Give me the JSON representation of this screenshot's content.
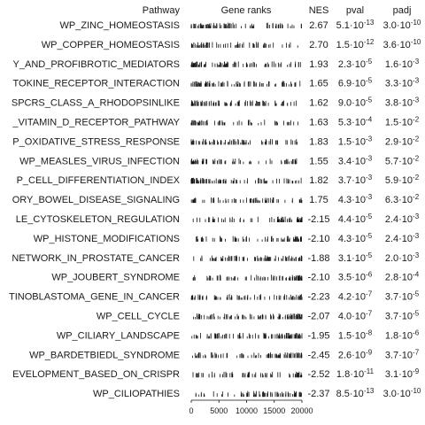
{
  "chart_data": {
    "type": "table",
    "columns": [
      "Pathway",
      "Gene ranks",
      "NES",
      "pval",
      "padj"
    ],
    "x_axis": {
      "ticks": [
        "0",
        "5000",
        "10000",
        "15000",
        "20000"
      ],
      "range": [
        0,
        20000
      ]
    },
    "rows": [
      {
        "pathway": "WP_ZINC_HOMEOSTASIS",
        "nes": "2.67",
        "pval_base": "5.1·10",
        "pval_exp": "-13",
        "padj_base": "3.0·10",
        "padj_exp": "-10",
        "direction": "up"
      },
      {
        "pathway": "WP_COPPER_HOMEOSTASIS",
        "nes": "2.70",
        "pval_base": "1.5·10",
        "pval_exp": "-12",
        "padj_base": "3.6·10",
        "padj_exp": "-10",
        "direction": "up"
      },
      {
        "pathway": "Y_AND_PROFIBROTIC_MEDIATORS",
        "nes": "1.93",
        "pval_base": "2.3·10",
        "pval_exp": "-5",
        "padj_base": "1.6·10",
        "padj_exp": "-3",
        "direction": "up"
      },
      {
        "pathway": "TOKINE_RECEPTOR_INTERACTION",
        "nes": "1.65",
        "pval_base": "6.9·10",
        "pval_exp": "-5",
        "padj_base": "3.3·10",
        "padj_exp": "-3",
        "direction": "up"
      },
      {
        "pathway": "SPCRS_CLASS_A_RHODOPSINLIKE",
        "nes": "1.62",
        "pval_base": "9.0·10",
        "pval_exp": "-5",
        "padj_base": "3.8·10",
        "padj_exp": "-3",
        "direction": "up"
      },
      {
        "pathway": "_VITAMIN_D_RECEPTOR_PATHWAY",
        "nes": "1.63",
        "pval_base": "5.3·10",
        "pval_exp": "-4",
        "padj_base": "1.5·10",
        "padj_exp": "-2",
        "direction": "up"
      },
      {
        "pathway": "P_OXIDATIVE_STRESS_RESPONSE",
        "nes": "1.83",
        "pval_base": "1.5·10",
        "pval_exp": "-3",
        "padj_base": "2.9·10",
        "padj_exp": "-2",
        "direction": "up"
      },
      {
        "pathway": "WP_MEASLES_VIRUS_INFECTION",
        "nes": "1.55",
        "pval_base": "3.4·10",
        "pval_exp": "-3",
        "padj_base": "5.7·10",
        "padj_exp": "-2",
        "direction": "up"
      },
      {
        "pathway": "P_CELL_DIFFERENTIATION_INDEX",
        "nes": "1.82",
        "pval_base": "3.7·10",
        "pval_exp": "-3",
        "padj_base": "5.9·10",
        "padj_exp": "-2",
        "direction": "up"
      },
      {
        "pathway": "ORY_BOWEL_DISEASE_SIGNALING",
        "nes": "1.75",
        "pval_base": "4.3·10",
        "pval_exp": "-3",
        "padj_base": "6.3·10",
        "padj_exp": "-2",
        "direction": "up"
      },
      {
        "pathway": "LE_CYTOSKELETON_REGULATION",
        "nes": "-2.15",
        "pval_base": "4.4·10",
        "pval_exp": "-5",
        "padj_base": "2.4·10",
        "padj_exp": "-3",
        "direction": "down"
      },
      {
        "pathway": "WP_HISTONE_MODIFICATIONS",
        "nes": "-2.10",
        "pval_base": "4.3·10",
        "pval_exp": "-5",
        "padj_base": "2.4·10",
        "padj_exp": "-3",
        "direction": "down"
      },
      {
        "pathway": "NETWORK_IN_PROSTATE_CANCER",
        "nes": "-1.88",
        "pval_base": "3.1·10",
        "pval_exp": "-5",
        "padj_base": "2.0·10",
        "padj_exp": "-3",
        "direction": "down"
      },
      {
        "pathway": "WP_JOUBERT_SYNDROME",
        "nes": "-2.10",
        "pval_base": "3.5·10",
        "pval_exp": "-6",
        "padj_base": "2.8·10",
        "padj_exp": "-4",
        "direction": "down"
      },
      {
        "pathway": "TINOBLASTOMA_GENE_IN_CANCER",
        "nes": "-2.23",
        "pval_base": "4.2·10",
        "pval_exp": "-7",
        "padj_base": "3.7·10",
        "padj_exp": "-5",
        "direction": "down"
      },
      {
        "pathway": "WP_CELL_CYCLE",
        "nes": "-2.07",
        "pval_base": "4.0·10",
        "pval_exp": "-7",
        "padj_base": "3.7·10",
        "padj_exp": "-5",
        "direction": "down"
      },
      {
        "pathway": "WP_CILIARY_LANDSCAPE",
        "nes": "-1.95",
        "pval_base": "1.5·10",
        "pval_exp": "-8",
        "padj_base": "1.8·10",
        "padj_exp": "-6",
        "direction": "down"
      },
      {
        "pathway": "WP_BARDETBIEDL_SYNDROME",
        "nes": "-2.45",
        "pval_base": "2.6·10",
        "pval_exp": "-9",
        "padj_base": "3.7·10",
        "padj_exp": "-7",
        "direction": "down"
      },
      {
        "pathway": "EVELOPMENT_BASED_ON_CRISPR",
        "nes": "-2.52",
        "pval_base": "1.8·10",
        "pval_exp": "-11",
        "padj_base": "3.1·10",
        "padj_exp": "-9",
        "direction": "down"
      },
      {
        "pathway": "WP_CILIOPATHIES",
        "nes": "-2.37",
        "pval_base": "8.5·10",
        "pval_exp": "-13",
        "padj_base": "3.0·10",
        "padj_exp": "-10",
        "direction": "down"
      }
    ]
  }
}
